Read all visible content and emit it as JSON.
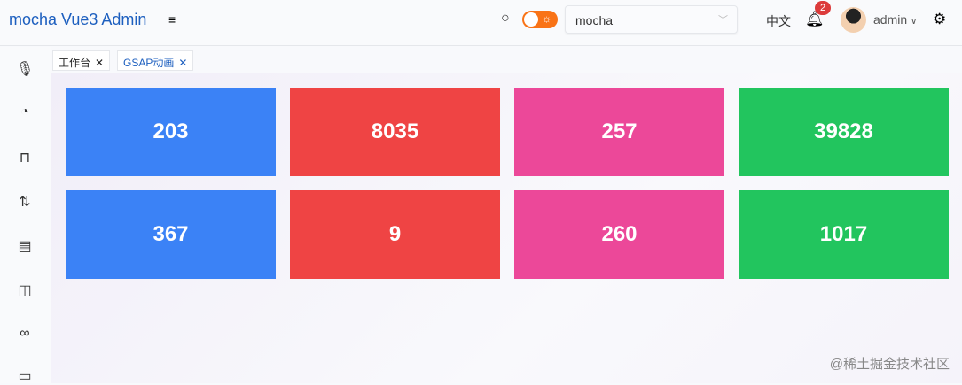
{
  "header": {
    "title": "mocha Vue3 Admin",
    "select_value": "mocha",
    "lang": "中文",
    "notification_count": "2",
    "user": "admin"
  },
  "tabs": [
    {
      "label": "工作台",
      "active": false
    },
    {
      "label": "GSAP动画",
      "active": true
    }
  ],
  "cards": [
    {
      "value": "203",
      "color": "#3b82f6"
    },
    {
      "value": "8035",
      "color": "#ef4444"
    },
    {
      "value": "257",
      "color": "#ec4899"
    },
    {
      "value": "39828",
      "color": "#22c55e"
    },
    {
      "value": "367",
      "color": "#3b82f6"
    },
    {
      "value": "9",
      "color": "#ef4444"
    },
    {
      "value": "260",
      "color": "#ec4899"
    },
    {
      "value": "1017",
      "color": "#22c55e"
    }
  ],
  "watermark": "@稀土掘金技术社区"
}
